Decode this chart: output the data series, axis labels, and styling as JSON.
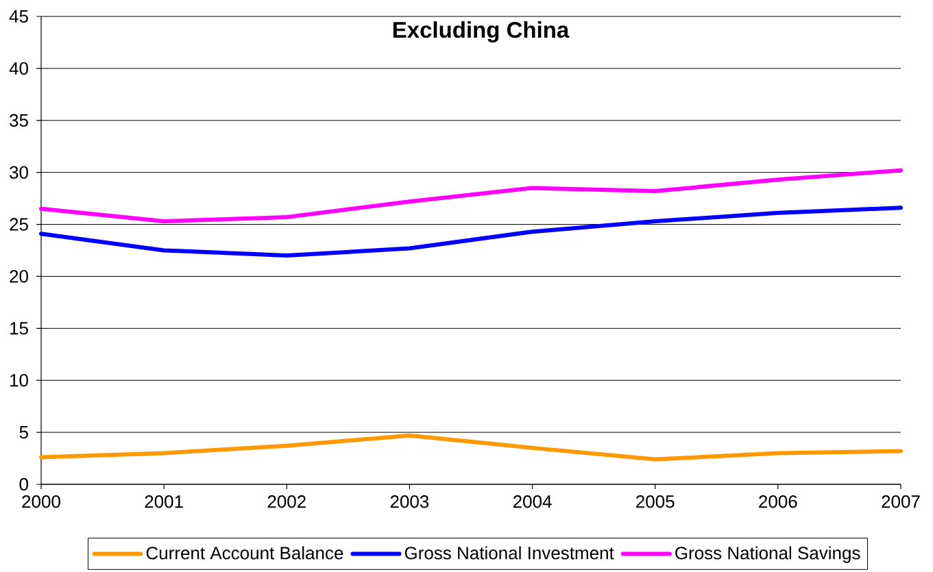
{
  "chart_data": {
    "type": "line",
    "title": "Excluding China",
    "x": [
      2000,
      2001,
      2002,
      2003,
      2004,
      2005,
      2006,
      2007
    ],
    "xlim": [
      2000,
      2007
    ],
    "xticks": [
      2000,
      2001,
      2002,
      2003,
      2004,
      2005,
      2006,
      2007
    ],
    "ylim": [
      0,
      45
    ],
    "yticks": [
      0,
      5,
      10,
      15,
      20,
      25,
      30,
      35,
      40,
      45
    ],
    "grid": "y",
    "legend": "bottom",
    "marker": "none",
    "line_style": "solid",
    "series": [
      {
        "name": "Current Account Balance",
        "color": "#ff9900",
        "values": [
          2.6,
          3.0,
          3.7,
          4.7,
          3.5,
          2.4,
          3.0,
          3.2
        ]
      },
      {
        "name": "Gross National Investment",
        "color": "#0000ff",
        "values": [
          24.1,
          22.5,
          22.0,
          22.7,
          24.3,
          25.3,
          26.1,
          26.6
        ]
      },
      {
        "name": "Gross National Savings",
        "color": "#ff00ff",
        "values": [
          26.5,
          25.3,
          25.7,
          27.2,
          28.5,
          28.2,
          29.3,
          30.2
        ]
      }
    ]
  }
}
